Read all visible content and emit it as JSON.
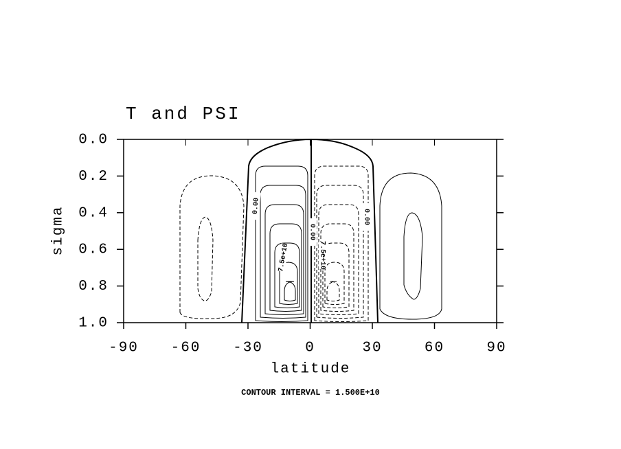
{
  "chart_data": {
    "type": "contour",
    "title": "T and PSI",
    "xlabel": "latitude",
    "ylabel": "sigma",
    "footer": "CONTOUR INTERVAL = 1.500E+10",
    "xlim": [
      -90,
      90
    ],
    "xticks": [
      -90,
      -60,
      -30,
      0,
      30,
      60,
      90
    ],
    "ylim": [
      0,
      1
    ],
    "yticks": [
      {
        "value": 0,
        "label": "0.0"
      },
      {
        "value": 0.2,
        "label": "0.2"
      },
      {
        "value": 0.4,
        "label": "0.4"
      },
      {
        "value": 0.6,
        "label": "0.6"
      },
      {
        "value": 0.8,
        "label": "0.8"
      },
      {
        "value": 1,
        "label": "1.0"
      }
    ],
    "y_inverted": true,
    "annotations": [
      "0.00",
      "0.00",
      "0.00",
      "7.5e+10",
      "7.5e+10"
    ]
  }
}
